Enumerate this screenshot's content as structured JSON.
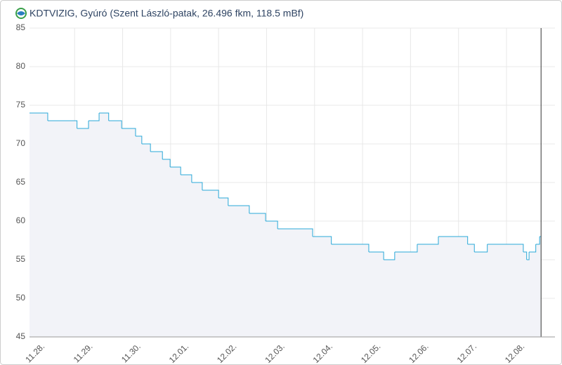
{
  "chart_data": {
    "type": "line",
    "step": true,
    "title": "KDTVIZIG, Gyúró (Szent László-patak, 26.496 fkm, 118.5 mBf)",
    "x": [
      0.06,
      0.44,
      1.05,
      1.29,
      1.51,
      1.71,
      1.98,
      2.27,
      2.4,
      2.58,
      2.83,
      2.99,
      3.21,
      3.44,
      3.66,
      4.0,
      4.2,
      4.64,
      4.98,
      5.23,
      5.96,
      6.35,
      7.13,
      7.44,
      7.67,
      8.14,
      8.58,
      9.19,
      9.33,
      9.6,
      10.35,
      10.42,
      10.47,
      10.61,
      10.69,
      10.72
    ],
    "values": [
      74,
      73,
      72,
      73,
      74,
      73,
      72,
      71,
      70,
      69,
      68,
      67,
      66,
      65,
      64,
      63,
      62,
      61,
      60,
      59,
      58,
      57,
      56,
      55,
      56,
      57,
      58,
      57,
      56,
      57,
      56,
      55,
      56,
      57,
      58,
      58
    ],
    "color": "#2aa8d8",
    "area_color": "#f2f3f8",
    "xlim": [
      0.06,
      11.01
    ],
    "xticks": [
      {
        "value": 0,
        "label": "11.28."
      },
      {
        "value": 1,
        "label": "11.29."
      },
      {
        "value": 2,
        "label": "11.30."
      },
      {
        "value": 3,
        "label": "12.01."
      },
      {
        "value": 4,
        "label": "12.02."
      },
      {
        "value": 5,
        "label": "12.03."
      },
      {
        "value": 6,
        "label": "12.04."
      },
      {
        "value": 7,
        "label": "12.05."
      },
      {
        "value": 8,
        "label": "12.06."
      },
      {
        "value": 9,
        "label": "12.07."
      },
      {
        "value": 10,
        "label": "12.08."
      }
    ],
    "ylim": [
      45,
      85
    ],
    "yticks": [
      45,
      50,
      55,
      60,
      65,
      70,
      75,
      80,
      85
    ],
    "grid": true
  }
}
